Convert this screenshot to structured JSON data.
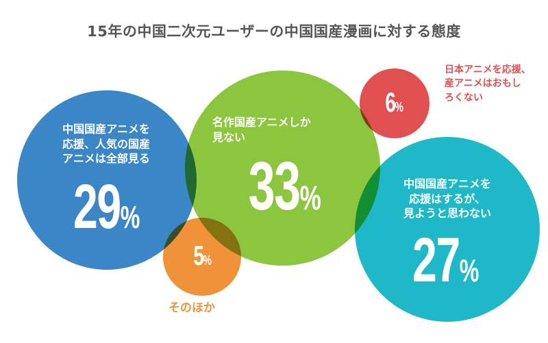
{
  "title": "15年の中国二次元ユーザーの中国国産漫画に対する態度",
  "chart_data": {
    "type": "bubble",
    "title": "15年の中国二次元ユーザーの中国国産漫画に対する態度",
    "unit": "%",
    "items": [
      {
        "label": "中国国産アニメを応援、人気の国産アニメは全部見る",
        "lines": [
          "中国国産アニメを",
          "応援、人気の国産",
          "アニメは全部見る"
        ],
        "value": 29,
        "color": "#3b86c6"
      },
      {
        "label": "名作国産アニメしか見ない",
        "lines": [
          "名作国産アニメしか",
          "見ない"
        ],
        "value": 33,
        "color": "#8cc63f"
      },
      {
        "label": "日本アニメを応援、産アニメはおもしろくない",
        "lines": [
          "日本アニメを応援、",
          "産アニメはおもし",
          "ろくない"
        ],
        "value": 6,
        "color": "#e05050"
      },
      {
        "label": "中国国産アニメを応援はするが、見ようと思わない",
        "lines": [
          "中国国産アニメを",
          "応援はするが、",
          "見ようと思わない"
        ],
        "value": 27,
        "color": "#1fb8c8"
      },
      {
        "label": "そのほか",
        "lines": [
          "そのほか"
        ],
        "value": 5,
        "color": "#f0923a"
      }
    ]
  }
}
